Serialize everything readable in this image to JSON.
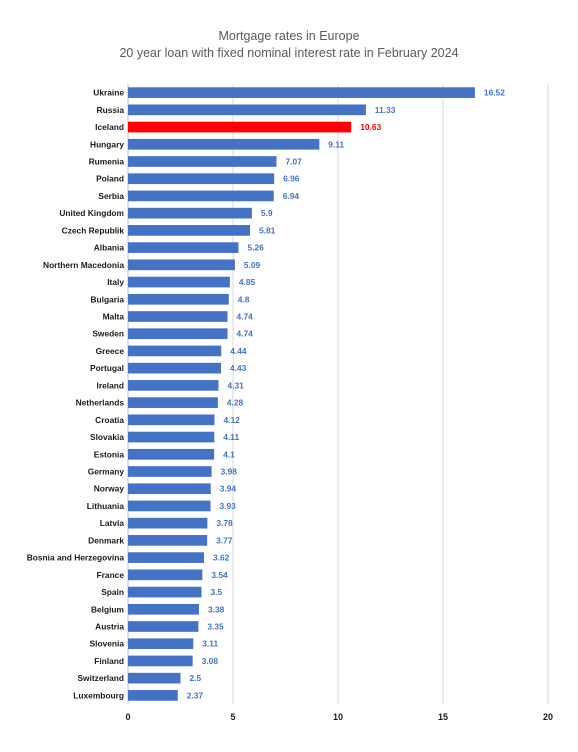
{
  "chart_data": {
    "type": "bar",
    "orientation": "horizontal",
    "title": "Mortgage rates in Europe",
    "subtitle": "20 year loan with fixed nominal interest rate in February 2024",
    "xlim": [
      0,
      20
    ],
    "xticks": [
      0,
      5,
      10,
      15,
      20
    ],
    "grid": true,
    "colors": {
      "default": "#4472c4",
      "highlight": "#ff0000"
    },
    "highlight": "Iceland",
    "categories": [
      "Ukraine",
      "Russia",
      "Iceland",
      "Hungary",
      "Rumenia",
      "Poland",
      "Serbia",
      "United Kingdom",
      "Czech Republik",
      "Albania",
      "Northern Macedonia",
      "Italy",
      "Bulgaria",
      "Malta",
      "Sweden",
      "Greece",
      "Portugal",
      "Ireland",
      "Netherlands",
      "Croatia",
      "Slovakia",
      "Estonia",
      "Germany",
      "Norway",
      "Lithuania",
      "Latvia",
      "Denmark",
      "Bosnia and Herzegovina",
      "France",
      "Spain",
      "Belgium",
      "Austria",
      "Slovenia",
      "Finland",
      "Switzerland",
      "Luxembourg"
    ],
    "values": [
      16.52,
      11.33,
      10.63,
      9.11,
      7.07,
      6.96,
      6.94,
      5.9,
      5.81,
      5.26,
      5.09,
      4.85,
      4.8,
      4.74,
      4.74,
      4.44,
      4.43,
      4.31,
      4.28,
      4.12,
      4.11,
      4.1,
      3.98,
      3.94,
      3.93,
      3.78,
      3.77,
      3.62,
      3.54,
      3.5,
      3.38,
      3.35,
      3.11,
      3.08,
      2.5,
      2.37
    ],
    "value_labels": [
      "16.52",
      "11.33",
      "10.63",
      "9.11",
      "7.07",
      "6.96",
      "6.94",
      "5.9",
      "5.81",
      "5.26",
      "5.09",
      "4.85",
      "4.8",
      "4.74",
      "4.74",
      "4.44",
      "4.43",
      "4.31",
      "4.28",
      "4.12",
      "4.11",
      "4.1",
      "3.98",
      "3.94",
      "3.93",
      "3.78",
      "3.77",
      "3.62",
      "3.54",
      "3.5",
      "3.38",
      "3.35",
      "3.11",
      "3.08",
      "2.5",
      "2.37"
    ]
  }
}
